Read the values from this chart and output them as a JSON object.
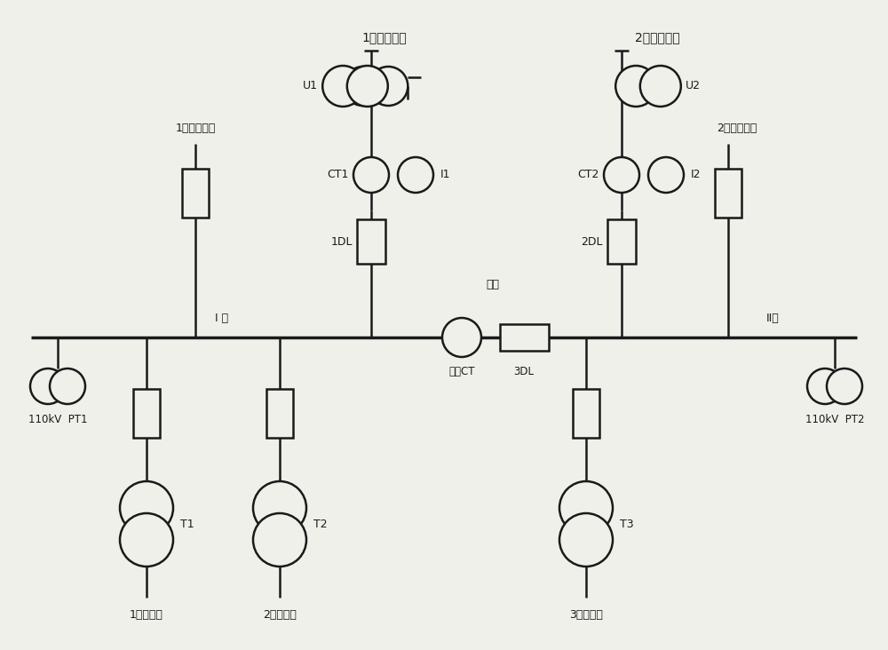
{
  "bg_color": "#f0f0eb",
  "line_color": "#1a1a1a",
  "labels": {
    "source1": "1号电源支路",
    "source2": "2号电源支路",
    "out1": "1号出线支路",
    "out2": "2号出线支路",
    "bus1": "I 母",
    "bus2": "II母",
    "pt1": "110kV  PT1",
    "pt2": "110kV  PT2",
    "t1": "1号变压器",
    "t2": "2号变压器",
    "t3": "3号变压器",
    "u1": "U1",
    "u2": "U2",
    "ct1": "CT1",
    "ct2": "CT2",
    "i1": "I1",
    "i2": "I2",
    "dl1": "1DL",
    "dl2": "2DL",
    "dl3": "3DL",
    "fenduan": "分段",
    "fenduanCT": "分段CT",
    "T1": "T1",
    "T2": "T2",
    "T3": "T3"
  }
}
